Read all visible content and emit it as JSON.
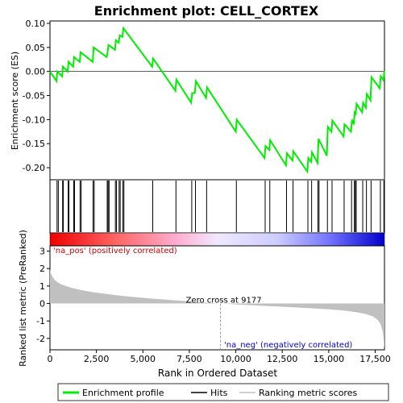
{
  "chart_data": {
    "title": "Enrichment plot: CELL_CORTEX",
    "type": "line",
    "x_axis": {
      "label": "Rank in Ordered Dataset",
      "range": [
        0,
        18000
      ],
      "ticks": [
        0,
        2500,
        5000,
        7500,
        10000,
        12500,
        15000,
        17500
      ],
      "tick_labels": [
        "0",
        "2,500",
        "5,000",
        "7,500",
        "10,000",
        "12,500",
        "15,000",
        "17,500"
      ]
    },
    "es_panel": {
      "ylabel": "Enrichment score (ES)",
      "ylim": [
        -0.225,
        0.105
      ],
      "yticks": [
        0.1,
        0.05,
        0.0,
        -0.05,
        -0.1,
        -0.15,
        -0.2
      ],
      "ytick_labels": [
        "0.10",
        "0.05",
        "0.00",
        "-0.05",
        "-0.10",
        "-0.15",
        "-0.20"
      ],
      "line_color": "#00ee00",
      "points": [
        [
          0,
          0.0
        ],
        [
          350,
          -0.02
        ],
        [
          400,
          0.0
        ],
        [
          650,
          -0.01
        ],
        [
          700,
          0.01
        ],
        [
          950,
          0.0
        ],
        [
          1000,
          0.02
        ],
        [
          1250,
          0.01
        ],
        [
          1300,
          0.03
        ],
        [
          1600,
          0.02
        ],
        [
          1650,
          0.04
        ],
        [
          2300,
          0.02
        ],
        [
          2350,
          0.05
        ],
        [
          3050,
          0.03
        ],
        [
          3100,
          0.04
        ],
        [
          3150,
          0.055
        ],
        [
          3500,
          0.045
        ],
        [
          3550,
          0.065
        ],
        [
          3700,
          0.06
        ],
        [
          3750,
          0.075
        ],
        [
          3900,
          0.072
        ],
        [
          3950,
          0.09
        ],
        [
          5500,
          0.01
        ],
        [
          5550,
          0.027
        ],
        [
          6750,
          -0.04
        ],
        [
          6800,
          -0.017
        ],
        [
          7600,
          -0.065
        ],
        [
          7650,
          -0.045
        ],
        [
          7800,
          -0.045
        ],
        [
          7850,
          -0.02
        ],
        [
          8400,
          -0.055
        ],
        [
          8450,
          -0.033
        ],
        [
          10000,
          -0.125
        ],
        [
          10050,
          -0.1
        ],
        [
          11550,
          -0.18
        ],
        [
          11600,
          -0.155
        ],
        [
          11800,
          -0.163
        ],
        [
          11850,
          -0.143
        ],
        [
          12700,
          -0.195
        ],
        [
          12750,
          -0.17
        ],
        [
          13050,
          -0.185
        ],
        [
          13100,
          -0.166
        ],
        [
          13850,
          -0.208
        ],
        [
          13900,
          -0.18
        ],
        [
          14050,
          -0.188
        ],
        [
          14100,
          -0.168
        ],
        [
          14400,
          -0.19
        ],
        [
          14450,
          -0.14
        ],
        [
          14900,
          -0.175
        ],
        [
          14950,
          -0.115
        ],
        [
          15150,
          -0.125
        ],
        [
          15200,
          -0.102
        ],
        [
          15800,
          -0.135
        ],
        [
          15850,
          -0.11
        ],
        [
          16200,
          -0.125
        ],
        [
          16250,
          -0.1
        ],
        [
          16350,
          -0.11
        ],
        [
          16400,
          -0.085
        ],
        [
          16450,
          -0.088
        ],
        [
          16500,
          -0.067
        ],
        [
          16800,
          -0.085
        ],
        [
          16850,
          -0.065
        ],
        [
          17000,
          -0.075
        ],
        [
          17050,
          -0.047
        ],
        [
          17250,
          -0.06
        ],
        [
          17300,
          -0.012
        ],
        [
          17750,
          -0.035
        ],
        [
          17800,
          -0.01
        ],
        [
          17950,
          -0.018
        ],
        [
          17990,
          0.001
        ]
      ]
    },
    "hits": [
      380,
      450,
      680,
      720,
      980,
      1020,
      1280,
      1320,
      1620,
      1680,
      2320,
      2380,
      3080,
      3130,
      3180,
      3520,
      3580,
      3720,
      3780,
      3920,
      3980,
      5530,
      6780,
      7630,
      7830,
      8430,
      10030,
      11580,
      11830,
      12730,
      13080,
      13880,
      14080,
      14420,
      14480,
      14930,
      15180,
      15830,
      16230,
      16380,
      16430,
      16480,
      16830,
      17030,
      17280,
      17780,
      17970
    ],
    "color_bar": {
      "stops": [
        "#ee0000",
        "#ff7777",
        "#ffbbdd",
        "#ddddff",
        "#8888ff",
        "#0000cc"
      ]
    },
    "metric_panel": {
      "ylabel": "Ranked list metric (PreRanked)",
      "ylim": [
        -2.65,
        3.3
      ],
      "yticks": [
        3,
        2,
        1,
        0,
        -1,
        -2
      ],
      "ytick_labels": [
        "3",
        "2",
        "1",
        "0",
        "-1",
        "-2"
      ],
      "fill_color": "#c0c0c0",
      "zero_cross_rank": 9177,
      "zero_cross_label": "Zero cross at 9177",
      "pos_label": "'na_pos' (positively correlated)",
      "neg_label": "'na_neg' (negatively correlated)",
      "pos_color": "#cc0000",
      "neg_color": "#0000cc",
      "curve": [
        [
          0,
          1.95
        ],
        [
          40,
          1.75
        ],
        [
          120,
          1.55
        ],
        [
          250,
          1.35
        ],
        [
          400,
          1.22
        ],
        [
          600,
          1.1
        ],
        [
          900,
          0.98
        ],
        [
          1300,
          0.86
        ],
        [
          1800,
          0.74
        ],
        [
          2500,
          0.62
        ],
        [
          3500,
          0.48
        ],
        [
          4500,
          0.37
        ],
        [
          5500,
          0.28
        ],
        [
          6500,
          0.2
        ],
        [
          7500,
          0.12
        ],
        [
          8500,
          0.04
        ],
        [
          9177,
          0.0
        ],
        [
          10000,
          -0.05
        ],
        [
          11000,
          -0.11
        ],
        [
          12000,
          -0.16
        ],
        [
          13000,
          -0.21
        ],
        [
          14000,
          -0.27
        ],
        [
          15000,
          -0.33
        ],
        [
          15800,
          -0.4
        ],
        [
          16500,
          -0.5
        ],
        [
          17000,
          -0.6
        ],
        [
          17400,
          -0.75
        ],
        [
          17650,
          -0.95
        ],
        [
          17800,
          -1.2
        ],
        [
          17900,
          -1.6
        ],
        [
          17960,
          -2.1
        ],
        [
          17990,
          -2.55
        ],
        [
          18000,
          -2.55
        ]
      ]
    },
    "legend": {
      "items": [
        {
          "label": "Enrichment profile",
          "color": "#00ee00",
          "kind": "line"
        },
        {
          "label": "Hits",
          "color": "#000000",
          "kind": "line"
        },
        {
          "label": "Ranking metric scores",
          "color": "#c0c0c0",
          "kind": "line"
        }
      ]
    }
  }
}
